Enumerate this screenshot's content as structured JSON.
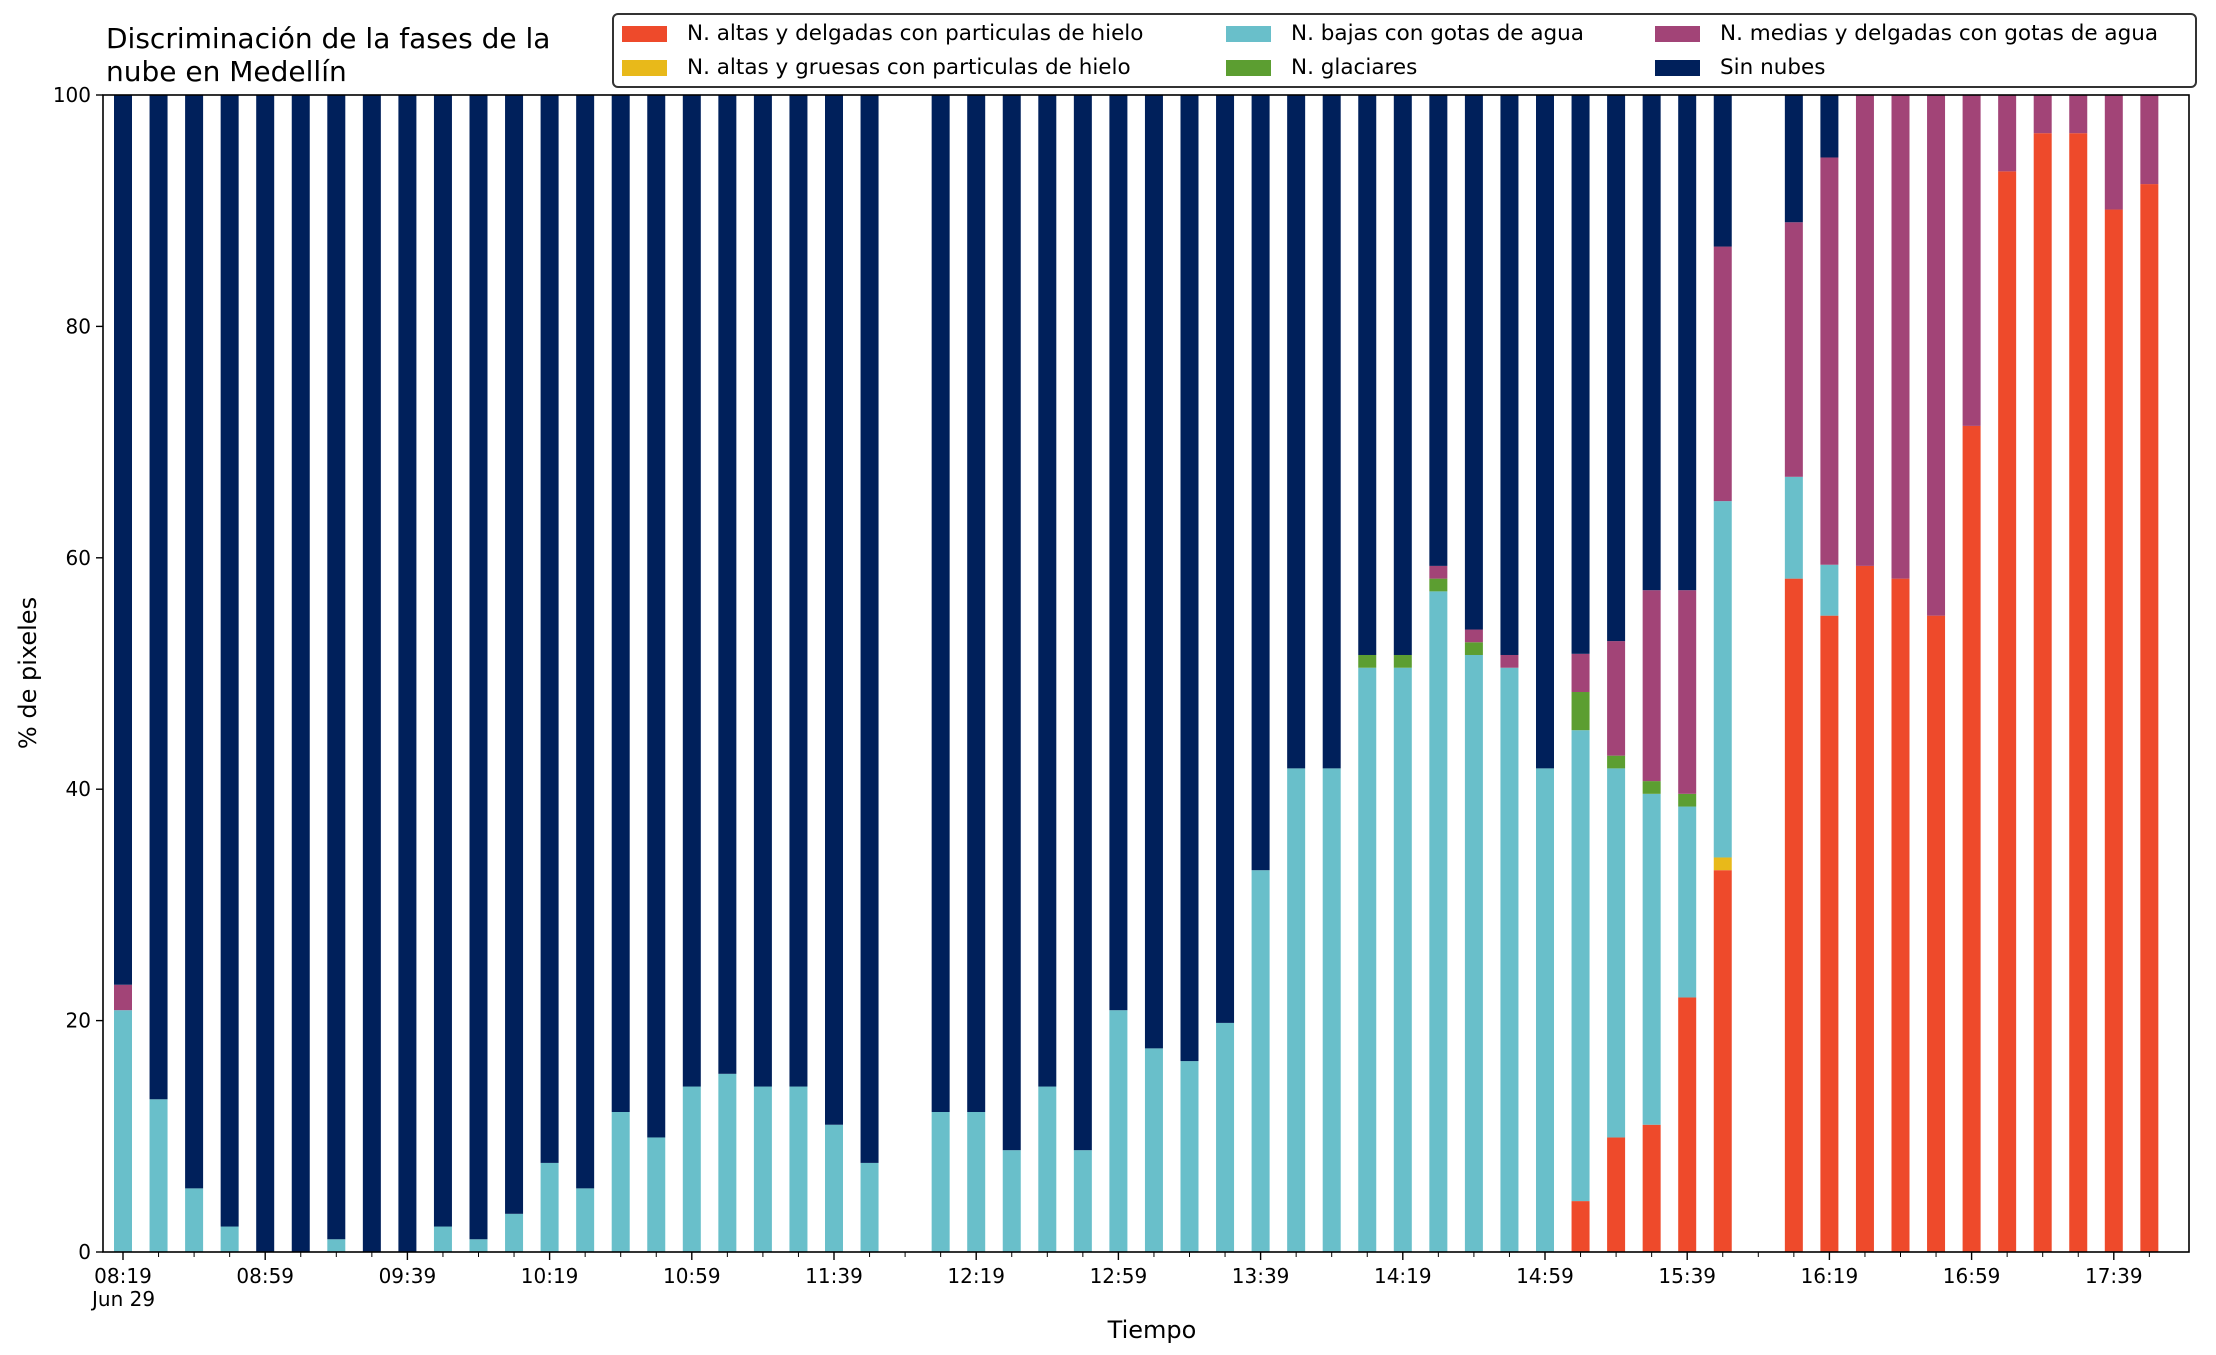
{
  "title": "Discriminación de la fases de la\nnube en Medellín",
  "legend": [
    {
      "label": "N. altas y delgadas con particulas de hielo",
      "color": "#ee4a2b"
    },
    {
      "label": "N. altas y gruesas con particulas de hielo",
      "color": "#e8b91a"
    },
    {
      "label": "N. bajas con gotas de agua",
      "color": "#69bfca"
    },
    {
      "label": "N. glaciares",
      "color": "#5c9e31"
    },
    {
      "label": "N. medias y delgadas con gotas de agua",
      "color": "#a24477"
    },
    {
      "label": "Sin nubes",
      "color": "#00205b"
    }
  ],
  "chart_data": {
    "type": "bar",
    "stacked": true,
    "title": "Discriminación de la fases de la\nnube en Medellín",
    "xlabel": "Tiempo",
    "ylabel": "% de pixeles",
    "ylim": [
      0,
      100
    ],
    "yticks": [
      0,
      20,
      40,
      60,
      80,
      100
    ],
    "x_tick_labels": [
      "08:19",
      "08:59",
      "09:39",
      "10:19",
      "10:59",
      "11:39",
      "12:19",
      "12:59",
      "13:39",
      "14:19",
      "14:59",
      "15:39",
      "16:19",
      "16:59",
      "17:39"
    ],
    "x_date_label": "Jun 29",
    "legend_position": "top",
    "categories": [
      "08:19",
      "08:29",
      "08:39",
      "08:49",
      "08:59",
      "09:09",
      "09:19",
      "09:29",
      "09:39",
      "09:49",
      "09:59",
      "10:09",
      "10:19",
      "10:29",
      "10:39",
      "10:49",
      "10:59",
      "11:09",
      "11:19",
      "11:29",
      "11:39",
      "11:49",
      "11:59",
      "12:09",
      "12:19",
      "12:29",
      "12:39",
      "12:49",
      "12:59",
      "13:09",
      "13:19",
      "13:29",
      "13:39",
      "13:49",
      "13:59",
      "14:09",
      "14:19",
      "14:29",
      "14:39",
      "14:49",
      "14:59",
      "15:09",
      "15:19",
      "15:29",
      "15:39",
      "15:49",
      "15:59",
      "16:09",
      "16:19",
      "16:29",
      "16:39",
      "16:49",
      "16:59",
      "17:09",
      "17:19",
      "17:29",
      "17:39",
      "17:49"
    ],
    "series": [
      {
        "name": "N. altas y delgadas con particulas de hielo",
        "color": "#ee4a2b",
        "values": [
          0,
          0,
          0,
          0,
          0,
          0,
          0,
          0,
          0,
          0,
          0,
          0,
          0,
          0,
          0,
          0,
          0,
          0,
          0,
          0,
          0,
          0,
          null,
          0,
          0,
          0,
          0,
          0,
          0,
          0,
          0,
          0,
          0,
          0,
          0,
          0,
          0,
          0,
          0,
          0,
          0,
          4.4,
          9.9,
          11,
          22,
          33,
          null,
          58.2,
          55,
          59.3,
          58.2,
          55,
          71.4,
          93.4,
          96.7,
          96.7,
          90.1,
          92.3
        ]
      },
      {
        "name": "N. altas y gruesas con particulas de hielo",
        "color": "#e8b91a",
        "values": [
          0,
          0,
          0,
          0,
          0,
          0,
          0,
          0,
          0,
          0,
          0,
          0,
          0,
          0,
          0,
          0,
          0,
          0,
          0,
          0,
          0,
          0,
          null,
          0,
          0,
          0,
          0,
          0,
          0,
          0,
          0,
          0,
          0,
          0,
          0,
          0,
          0,
          0,
          0,
          0,
          0,
          0,
          0,
          0,
          0,
          1.1,
          null,
          0,
          0,
          0,
          0,
          0,
          0,
          0,
          0,
          0,
          0,
          0
        ]
      },
      {
        "name": "N. bajas con gotas de agua",
        "color": "#69bfca",
        "values": [
          20.9,
          13.2,
          5.5,
          2.2,
          0,
          0,
          1.1,
          0,
          0,
          2.2,
          1.1,
          3.3,
          7.7,
          5.5,
          12.1,
          9.9,
          14.3,
          15.4,
          14.3,
          14.3,
          11,
          7.7,
          null,
          12.1,
          12.1,
          8.8,
          14.3,
          8.8,
          20.9,
          17.6,
          16.5,
          19.8,
          33,
          41.8,
          41.8,
          50.5,
          50.5,
          57.1,
          51.6,
          50.5,
          41.8,
          40.7,
          31.9,
          28.6,
          16.5,
          30.8,
          null,
          8.8,
          4.4,
          0,
          0,
          0,
          0,
          0,
          0,
          0,
          0,
          0
        ]
      },
      {
        "name": "N. glaciares",
        "color": "#5c9e31",
        "values": [
          0,
          0,
          0,
          0,
          0,
          0,
          0,
          0,
          0,
          0,
          0,
          0,
          0,
          0,
          0,
          0,
          0,
          0,
          0,
          0,
          0,
          0,
          null,
          0,
          0,
          0,
          0,
          0,
          0,
          0,
          0,
          0,
          0,
          0,
          0,
          1.1,
          1.1,
          1.1,
          1.1,
          0,
          0,
          3.3,
          1.1,
          1.1,
          1.1,
          0,
          null,
          0,
          0,
          0,
          0,
          0,
          0,
          0,
          0,
          0,
          0,
          0
        ]
      },
      {
        "name": "N. medias y delgadas con gotas de agua",
        "color": "#a24477",
        "values": [
          2.2,
          0,
          0,
          0,
          0,
          0,
          0,
          0,
          0,
          0,
          0,
          0,
          0,
          0,
          0,
          0,
          0,
          0,
          0,
          0,
          0,
          0,
          null,
          0,
          0,
          0,
          0,
          0,
          0,
          0,
          0,
          0,
          0,
          0,
          0,
          0,
          0,
          1.1,
          1.1,
          1.1,
          0,
          3.3,
          9.9,
          16.5,
          17.6,
          22,
          null,
          22,
          35.2,
          40.7,
          41.8,
          45,
          28.6,
          6.6,
          3.3,
          3.3,
          9.9,
          7.7
        ]
      },
      {
        "name": "Sin nubes",
        "color": "#00205b",
        "values": [
          76.9,
          86.8,
          94.5,
          97.8,
          100,
          100,
          98.9,
          100,
          100,
          97.8,
          98.9,
          96.7,
          92.3,
          94.5,
          87.9,
          90.1,
          85.7,
          84.6,
          85.7,
          85.7,
          89,
          92.3,
          null,
          87.9,
          87.9,
          91.2,
          85.7,
          91.2,
          79.1,
          82.4,
          83.5,
          80.2,
          67,
          58.2,
          58.2,
          48.4,
          48.4,
          40.7,
          46.2,
          48.4,
          58.2,
          48.3,
          47.2,
          42.8,
          42.8,
          13.1,
          null,
          11,
          5.4,
          0,
          0,
          0,
          0,
          0,
          0,
          0,
          0,
          0
        ]
      }
    ]
  }
}
